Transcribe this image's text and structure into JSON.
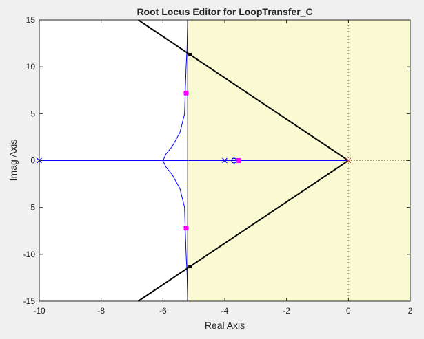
{
  "title": "Root Locus Editor for LoopTransfer_C",
  "colors": {
    "background": "#f0f0f0",
    "plot_bg": "#ffffff",
    "region_fill": "#fafad2",
    "locus": "#0000ff",
    "constraint": "#000000",
    "pole_marker": "#0000ff",
    "closed_loop_pole": "#ff00ff",
    "open_loop_origin": "#c0504d",
    "axis": "#262626"
  },
  "chart_data": {
    "type": "scatter",
    "title": "Root Locus Editor for LoopTransfer_C",
    "xlabel": "Real Axis",
    "ylabel": "Imag Axis",
    "xlim": [
      -10,
      2
    ],
    "ylim": [
      -15,
      15
    ],
    "xticks": [
      -10,
      -8,
      -6,
      -4,
      -2,
      0,
      2
    ],
    "yticks": [
      -15,
      -10,
      -5,
      0,
      5,
      10,
      15
    ],
    "xtick_labels": [
      "-10",
      "-8",
      "-6",
      "-4",
      "-2",
      "0",
      "2"
    ],
    "ytick_labels": [
      "-15",
      "-10",
      "-5",
      "0",
      "5",
      "10",
      "15"
    ],
    "grid": false,
    "shaded_region": {
      "x_min": -5.2,
      "x_max": 2
    },
    "real_axis_locus": [
      [
        -10,
        0
      ],
      [
        0,
        0
      ]
    ],
    "complex_branch_upper": [
      [
        -5.2,
        15
      ],
      [
        -5.22,
        12
      ],
      [
        -5.25,
        10
      ],
      [
        -5.28,
        7.2
      ],
      [
        -5.3,
        5
      ],
      [
        -5.45,
        3
      ],
      [
        -5.7,
        1.5
      ],
      [
        -5.9,
        0.7
      ],
      [
        -6.0,
        0
      ]
    ],
    "complex_branch_lower": [
      [
        -5.2,
        -15
      ],
      [
        -5.22,
        -12
      ],
      [
        -5.25,
        -10
      ],
      [
        -5.28,
        -7.2
      ],
      [
        -5.3,
        -5
      ],
      [
        -5.45,
        -3
      ],
      [
        -5.7,
        -1.5
      ],
      [
        -5.9,
        -0.7
      ],
      [
        -6.0,
        0
      ]
    ],
    "damping_line_upper": [
      [
        0,
        0
      ],
      [
        -6.8,
        15
      ]
    ],
    "damping_line_lower": [
      [
        0,
        0
      ],
      [
        -6.8,
        -15
      ]
    ],
    "open_loop_poles": [
      [
        -10,
        0
      ],
      [
        -4,
        0
      ],
      [
        0,
        0
      ]
    ],
    "open_loop_zeros": [
      [
        -3.7,
        0
      ]
    ],
    "closed_loop_poles": [
      [
        -5.25,
        7.2
      ],
      [
        -5.25,
        -7.2
      ],
      [
        -3.55,
        0
      ]
    ],
    "constraint_points": [
      [
        -5.2,
        11.3
      ],
      [
        -5.2,
        -11.3
      ]
    ]
  }
}
